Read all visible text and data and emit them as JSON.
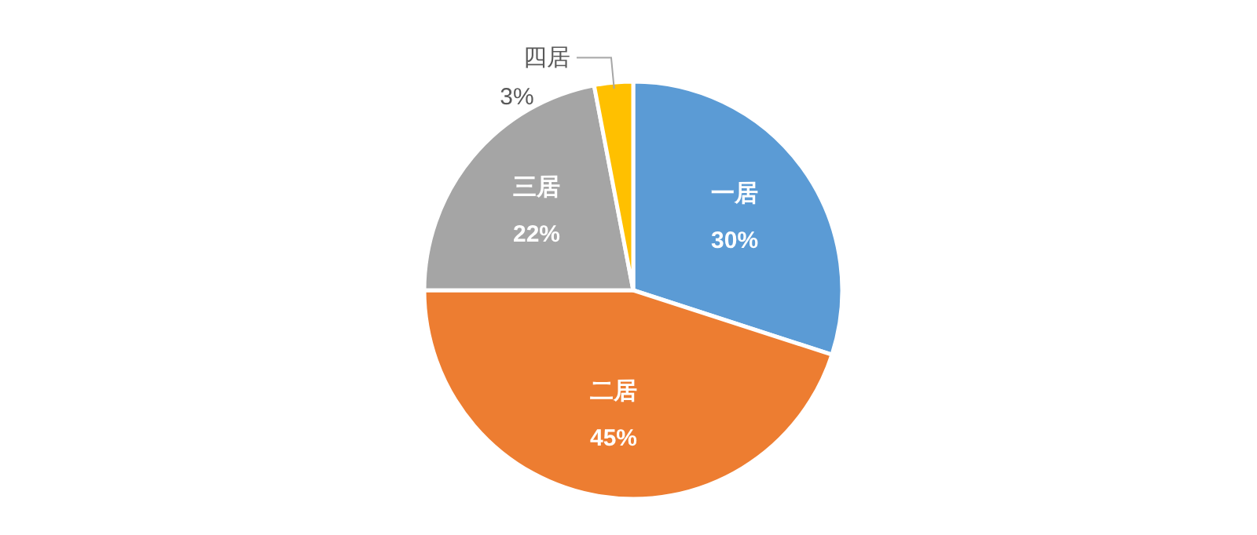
{
  "chart_data": {
    "type": "pie",
    "categories": [
      "一居",
      "二居",
      "三居",
      "四居"
    ],
    "values": [
      30,
      45,
      22,
      3
    ],
    "colors": [
      "#5b9bd5",
      "#ed7d31",
      "#a5a5a5",
      "#ffc000"
    ],
    "value_labels": [
      "30%",
      "45%",
      "22%",
      "3%"
    ]
  }
}
